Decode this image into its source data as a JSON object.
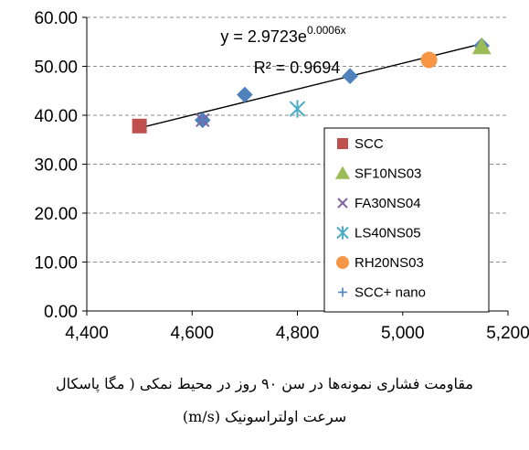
{
  "chart_data": {
    "type": "scatter",
    "xlim": [
      4400,
      5200
    ],
    "ylim": [
      0,
      60
    ],
    "x_ticks": [
      "4,400",
      "4,600",
      "4,800",
      "5,000",
      "5,200"
    ],
    "y_ticks": [
      "0.00",
      "10.00",
      "20.00",
      "30.00",
      "40.00",
      "50.00",
      "60.00"
    ],
    "grid": "horizontal dashed",
    "legend_position": "bottom-right",
    "series": [
      {
        "name": "SCC",
        "marker": "square",
        "color": "#c0504d",
        "points": [
          [
            4500,
            37.8
          ]
        ]
      },
      {
        "name": "SF10NS03",
        "marker": "triangle",
        "color": "#9bbb59",
        "points": [
          [
            5150,
            54.0
          ]
        ]
      },
      {
        "name": "FA30NS04",
        "marker": "x",
        "color": "#8064a2",
        "points": [
          [
            4620,
            39.0
          ]
        ]
      },
      {
        "name": "LS40NS05",
        "marker": "star",
        "color": "#4bacc6",
        "points": [
          [
            4800,
            41.3
          ]
        ]
      },
      {
        "name": "RH20NS03",
        "marker": "circle",
        "color": "#f79646",
        "points": [
          [
            5050,
            51.3
          ]
        ]
      },
      {
        "name": "SCC+ nano",
        "marker": "plus",
        "color": "#4f81bd",
        "points": [
          [
            4620,
            39.0
          ]
        ]
      }
    ],
    "extra_points": {
      "marker": "diamond",
      "color": "#4f81bd",
      "points": [
        [
          4620,
          39.0
        ],
        [
          4700,
          44.2
        ],
        [
          4900,
          48.0
        ],
        [
          5150,
          54.2
        ]
      ]
    },
    "trendline": {
      "type": "exponential",
      "a": 2.9723,
      "b": 0.0006,
      "x_range": [
        4500,
        5150
      ],
      "equation_prefix": "y = 2.9723e",
      "equation_exponent": "0.0006x",
      "r2_label": "R² = 0.9694"
    }
  },
  "caption": {
    "line1": "مقاومت فشاری نمونه‌ها در سن ۹۰ روز در محیط نمکی ( مگا پاسکال",
    "line2": "سرعت اولتراسونیک (m/s)"
  }
}
